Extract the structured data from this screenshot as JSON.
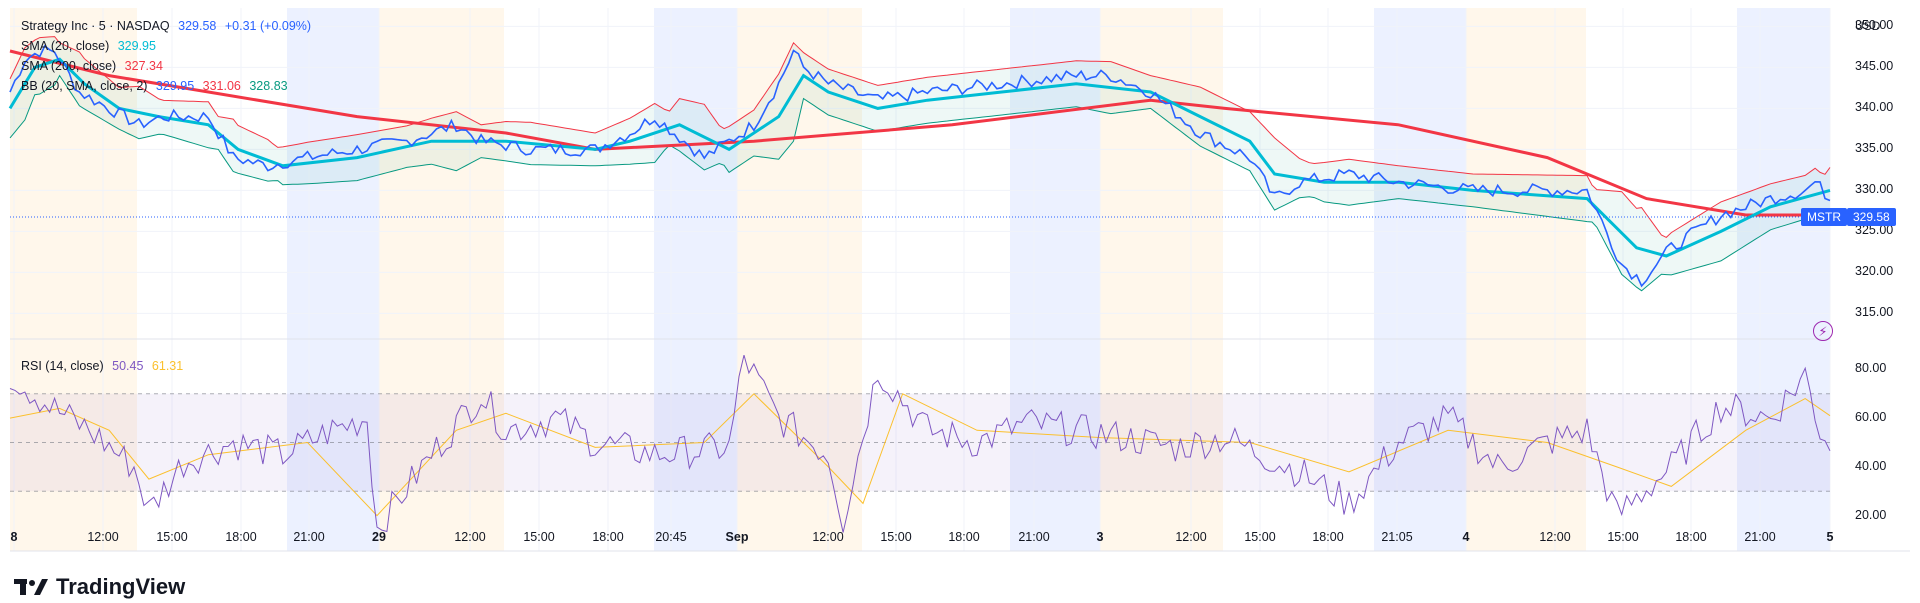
{
  "header": {
    "symbol_title": "Strategy Inc · 5 · NASDAQ",
    "price": "329.58",
    "change": "+0.31 (+0.09%)",
    "sma20_label": "SMA (20, close)",
    "sma20_value": "329.95",
    "sma200_label": "SMA (200, close)",
    "sma200_value": "327.34",
    "bb_label": "BB (20, SMA, close, 2)",
    "bb_basis": "329.95",
    "bb_upper": "331.06",
    "bb_lower": "328.83",
    "rsi_label": "RSI (14, close)",
    "rsi_value": "50.45",
    "rsi_ma_value": "61.31"
  },
  "price_axis": {
    "currency": "USD",
    "ticks": [
      "350.00",
      "345.00",
      "340.00",
      "335.00",
      "330.00",
      "325.00",
      "320.00",
      "315.00"
    ],
    "last_symbol_tag": "MSTR",
    "last_price_tag": "329.58"
  },
  "rsi_axis": {
    "ticks": [
      "80.00",
      "60.00",
      "40.00",
      "20.00"
    ]
  },
  "time_axis": {
    "labels": [
      "8",
      "12:00",
      "15:00",
      "18:00",
      "21:00",
      "29",
      "12:00",
      "15:00",
      "18:00",
      "20:45",
      "Sep",
      "12:00",
      "15:00",
      "18:00",
      "21:00",
      "3",
      "12:00",
      "15:00",
      "18:00",
      "21:05",
      "4",
      "12:00",
      "15:00",
      "18:00",
      "21:00",
      "5"
    ]
  },
  "branding": {
    "name": "TradingView"
  },
  "colors": {
    "price": "#2962ff",
    "sma20": "#00bcd4",
    "sma200": "#f23645",
    "bb_upper": "#f23645",
    "bb_lower": "#089981",
    "rsi": "#7e57c2",
    "rsi_ma": "#fbc02d",
    "premarket": "#2962ff",
    "postmarket": "#ff9800"
  },
  "chart_data": {
    "type": "line",
    "symbol": "MSTR",
    "interval": "5",
    "price_range": [
      312,
      352
    ],
    "rsi_range": [
      10,
      90
    ],
    "rsi_levels": [
      30,
      50,
      70
    ],
    "series": [
      {
        "name": "MSTR",
        "points": [
          [
            0,
            342
          ],
          [
            3,
            346
          ],
          [
            6,
            347
          ],
          [
            9,
            347
          ],
          [
            10,
            346
          ],
          [
            14,
            342
          ],
          [
            20,
            340
          ],
          [
            26,
            338
          ],
          [
            31,
            339
          ],
          [
            40,
            339
          ],
          [
            45,
            334
          ],
          [
            52,
            333
          ],
          [
            60,
            334
          ],
          [
            70,
            335
          ],
          [
            80,
            336
          ],
          [
            90,
            338
          ],
          [
            95,
            336
          ],
          [
            105,
            335
          ],
          [
            118,
            335
          ],
          [
            125,
            337
          ],
          [
            130,
            339
          ],
          [
            140,
            334
          ],
          [
            150,
            338
          ],
          [
            155,
            343
          ],
          [
            158,
            347
          ],
          [
            160,
            345
          ],
          [
            165,
            343
          ],
          [
            175,
            341
          ],
          [
            185,
            342
          ],
          [
            200,
            343
          ],
          [
            215,
            344
          ],
          [
            222,
            344
          ],
          [
            230,
            342
          ],
          [
            240,
            337
          ],
          [
            250,
            334
          ],
          [
            255,
            329
          ],
          [
            260,
            331
          ],
          [
            270,
            332
          ],
          [
            280,
            331
          ],
          [
            295,
            330
          ],
          [
            318,
            330
          ],
          [
            325,
            321
          ],
          [
            329,
            319
          ],
          [
            335,
            323
          ],
          [
            345,
            327
          ],
          [
            355,
            329
          ],
          [
            362,
            330
          ],
          [
            364,
            331
          ],
          [
            367,
            329
          ]
        ]
      },
      {
        "name": "SMA (20, close)",
        "points": [
          [
            0,
            340
          ],
          [
            5,
            345
          ],
          [
            10,
            346
          ],
          [
            15,
            343
          ],
          [
            22,
            340
          ],
          [
            30,
            339
          ],
          [
            40,
            338
          ],
          [
            46,
            335
          ],
          [
            55,
            333
          ],
          [
            70,
            334
          ],
          [
            85,
            336
          ],
          [
            100,
            336
          ],
          [
            118,
            335
          ],
          [
            125,
            336
          ],
          [
            135,
            338
          ],
          [
            145,
            335
          ],
          [
            155,
            339
          ],
          [
            160,
            344
          ],
          [
            165,
            342
          ],
          [
            175,
            340
          ],
          [
            185,
            341
          ],
          [
            200,
            342
          ],
          [
            215,
            343
          ],
          [
            230,
            342
          ],
          [
            240,
            339
          ],
          [
            250,
            336
          ],
          [
            255,
            332
          ],
          [
            265,
            331
          ],
          [
            280,
            331
          ],
          [
            295,
            330
          ],
          [
            318,
            329
          ],
          [
            328,
            323
          ],
          [
            334,
            322
          ],
          [
            345,
            325
          ],
          [
            355,
            328
          ],
          [
            367,
            330
          ]
        ]
      },
      {
        "name": "SMA (200, close)",
        "points": [
          [
            0,
            347
          ],
          [
            20,
            344
          ],
          [
            40,
            342
          ],
          [
            70,
            339
          ],
          [
            100,
            337
          ],
          [
            118,
            335
          ],
          [
            150,
            336
          ],
          [
            190,
            338
          ],
          [
            230,
            341
          ],
          [
            245,
            340
          ],
          [
            280,
            338
          ],
          [
            310,
            334
          ],
          [
            330,
            329
          ],
          [
            350,
            327
          ],
          [
            367,
            327
          ]
        ]
      }
    ],
    "rsi_series": [
      {
        "name": "RSI (14, close)",
        "points": [
          [
            0,
            78
          ],
          [
            8,
            65
          ],
          [
            16,
            55
          ],
          [
            25,
            40
          ],
          [
            28,
            22
          ],
          [
            35,
            42
          ],
          [
            45,
            50
          ],
          [
            55,
            45
          ],
          [
            65,
            55
          ],
          [
            72,
            60
          ],
          [
            74,
            15
          ],
          [
            85,
            45
          ],
          [
            95,
            70
          ],
          [
            100,
            55
          ],
          [
            110,
            60
          ],
          [
            118,
            50
          ],
          [
            130,
            45
          ],
          [
            145,
            48
          ],
          [
            148,
            85
          ],
          [
            155,
            60
          ],
          [
            165,
            45
          ],
          [
            168,
            18
          ],
          [
            175,
            80
          ],
          [
            185,
            55
          ],
          [
            195,
            50
          ],
          [
            205,
            58
          ],
          [
            215,
            55
          ],
          [
            225,
            52
          ],
          [
            235,
            48
          ],
          [
            245,
            52
          ],
          [
            260,
            38
          ],
          [
            270,
            25
          ],
          [
            280,
            50
          ],
          [
            290,
            60
          ],
          [
            300,
            40
          ],
          [
            310,
            50
          ],
          [
            318,
            55
          ],
          [
            324,
            20
          ],
          [
            335,
            40
          ],
          [
            345,
            65
          ],
          [
            355,
            60
          ],
          [
            362,
            78
          ],
          [
            365,
            55
          ],
          [
            367,
            50
          ]
        ]
      },
      {
        "name": "RSI MA",
        "points": [
          [
            0,
            60
          ],
          [
            10,
            64
          ],
          [
            20,
            55
          ],
          [
            28,
            35
          ],
          [
            40,
            45
          ],
          [
            60,
            50
          ],
          [
            74,
            20
          ],
          [
            90,
            55
          ],
          [
            100,
            62
          ],
          [
            118,
            48
          ],
          [
            140,
            50
          ],
          [
            150,
            70
          ],
          [
            165,
            40
          ],
          [
            172,
            25
          ],
          [
            180,
            70
          ],
          [
            195,
            55
          ],
          [
            220,
            52
          ],
          [
            250,
            50
          ],
          [
            270,
            38
          ],
          [
            290,
            55
          ],
          [
            310,
            50
          ],
          [
            324,
            40
          ],
          [
            335,
            32
          ],
          [
            350,
            55
          ],
          [
            362,
            68
          ],
          [
            367,
            61
          ]
        ]
      }
    ]
  }
}
